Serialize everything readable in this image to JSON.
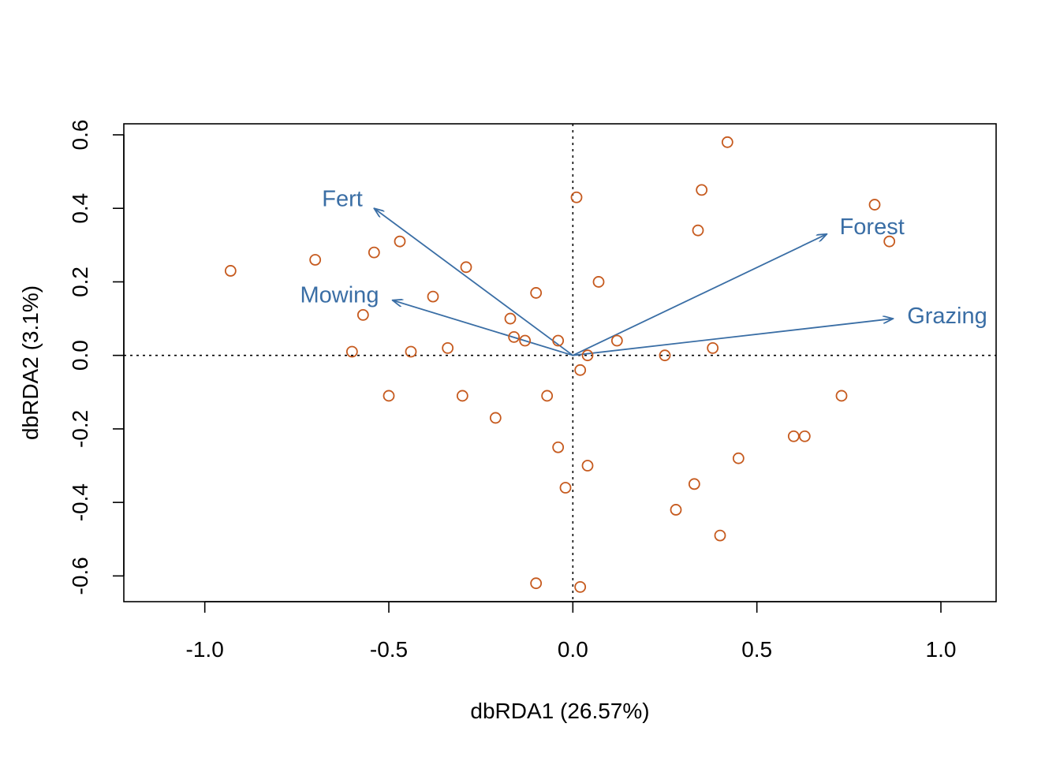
{
  "chart_data": {
    "type": "scatter",
    "xlabel": "dbRDA1 (26.57%)",
    "ylabel": "dbRDA2 (3.1%)",
    "xlim": [
      -1.22,
      1.15
    ],
    "ylim": [
      -0.67,
      0.63
    ],
    "x_ticks": [
      -1.0,
      -0.5,
      0.0,
      0.5,
      1.0
    ],
    "x_tick_labels": [
      "-1.0",
      "-0.5",
      "0.0",
      "0.5",
      "1.0"
    ],
    "y_ticks": [
      -0.6,
      -0.4,
      -0.2,
      0.0,
      0.2,
      0.4,
      0.6
    ],
    "y_tick_labels": [
      "-0.6",
      "-0.4",
      "-0.2",
      "0.0",
      "0.2",
      "0.4",
      "0.6"
    ],
    "grid": false,
    "reference_lines": {
      "x": 0,
      "y": 0,
      "style": "dotted"
    },
    "point_color": "#C65A1E",
    "arrow_color": "#3A6EA5",
    "points": [
      {
        "x": -0.93,
        "y": 0.23
      },
      {
        "x": -0.7,
        "y": 0.26
      },
      {
        "x": -0.57,
        "y": 0.11
      },
      {
        "x": -0.6,
        "y": 0.01
      },
      {
        "x": -0.54,
        "y": 0.28
      },
      {
        "x": -0.47,
        "y": 0.31
      },
      {
        "x": -0.5,
        "y": -0.11
      },
      {
        "x": -0.44,
        "y": 0.01
      },
      {
        "x": -0.38,
        "y": 0.16
      },
      {
        "x": -0.34,
        "y": 0.02
      },
      {
        "x": -0.29,
        "y": 0.24
      },
      {
        "x": -0.3,
        "y": -0.11
      },
      {
        "x": -0.21,
        "y": -0.17
      },
      {
        "x": -0.17,
        "y": 0.1
      },
      {
        "x": -0.16,
        "y": 0.05
      },
      {
        "x": -0.13,
        "y": 0.04
      },
      {
        "x": -0.1,
        "y": 0.17
      },
      {
        "x": -0.07,
        "y": -0.11
      },
      {
        "x": -0.04,
        "y": 0.04
      },
      {
        "x": -0.04,
        "y": -0.25
      },
      {
        "x": -0.02,
        "y": -0.36
      },
      {
        "x": -0.1,
        "y": -0.62
      },
      {
        "x": 0.01,
        "y": 0.43
      },
      {
        "x": 0.02,
        "y": -0.04
      },
      {
        "x": 0.04,
        "y": 0.0
      },
      {
        "x": 0.04,
        "y": -0.3
      },
      {
        "x": 0.02,
        "y": -0.63
      },
      {
        "x": 0.07,
        "y": 0.2
      },
      {
        "x": 0.12,
        "y": 0.04
      },
      {
        "x": 0.25,
        "y": 0.0
      },
      {
        "x": 0.28,
        "y": -0.42
      },
      {
        "x": 0.33,
        "y": -0.35
      },
      {
        "x": 0.34,
        "y": 0.34
      },
      {
        "x": 0.35,
        "y": 0.45
      },
      {
        "x": 0.38,
        "y": 0.02
      },
      {
        "x": 0.4,
        "y": -0.49
      },
      {
        "x": 0.42,
        "y": 0.58
      },
      {
        "x": 0.45,
        "y": -0.28
      },
      {
        "x": 0.6,
        "y": -0.22
      },
      {
        "x": 0.63,
        "y": -0.22
      },
      {
        "x": 0.73,
        "y": -0.11
      },
      {
        "x": 0.82,
        "y": 0.41
      },
      {
        "x": 0.86,
        "y": 0.31
      }
    ],
    "arrows": [
      {
        "label": "Fert",
        "x": -0.54,
        "y": 0.4
      },
      {
        "label": "Mowing",
        "x": -0.49,
        "y": 0.15
      },
      {
        "label": "Forest",
        "x": 0.69,
        "y": 0.33
      },
      {
        "label": "Grazing",
        "x": 0.87,
        "y": 0.1
      }
    ]
  }
}
